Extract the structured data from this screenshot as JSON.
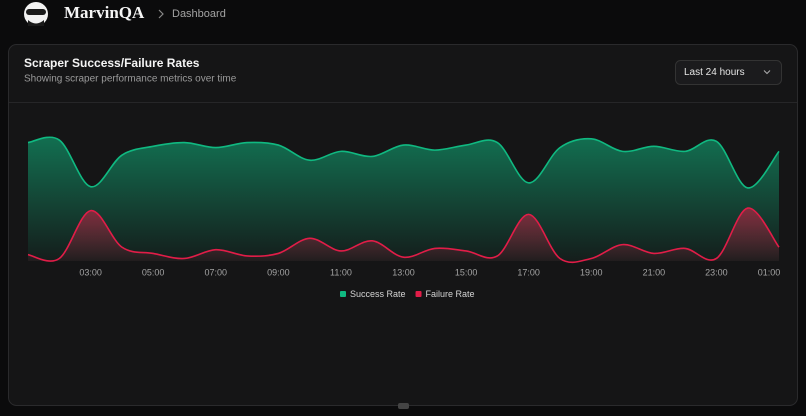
{
  "header": {
    "brand": "MarvinQA",
    "breadcrumb": "Dashboard"
  },
  "card": {
    "title": "Scraper Success/Failure Rates",
    "subtitle": "Showing scraper performance metrics over time",
    "range": "Last 24 hours"
  },
  "chart_data": {
    "type": "area",
    "categories": [
      null,
      null,
      "03:00",
      null,
      "05:00",
      null,
      "07:00",
      null,
      "09:00",
      null,
      "11:00",
      null,
      "13:00",
      null,
      "15:00",
      null,
      "17:00",
      null,
      "19:00",
      null,
      "21:00",
      null,
      "23:00",
      null,
      "01:00"
    ],
    "series": [
      {
        "name": "Success Rate",
        "color": "#10b981",
        "values": [
          94,
          96,
          59,
          84,
          91,
          94,
          90,
          94,
          92,
          80,
          87,
          83,
          92,
          88,
          92,
          94,
          62,
          90,
          97,
          87,
          91,
          87,
          95,
          58,
          87
        ]
      },
      {
        "name": "Failure Rate",
        "color": "#e11d48",
        "values": [
          5,
          2,
          40,
          11,
          6,
          2,
          9,
          4,
          6,
          18,
          8,
          16,
          3,
          10,
          8,
          4,
          37,
          2,
          2,
          13,
          6,
          10,
          2,
          42,
          11
        ]
      }
    ],
    "ylim": [
      0,
      100
    ]
  }
}
